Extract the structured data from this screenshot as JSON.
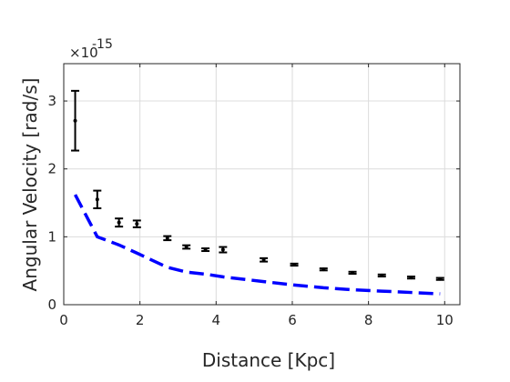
{
  "chart_data": {
    "type": "scatter",
    "title": "",
    "xlabel": "Distance [Kpc]",
    "ylabel": "Angular Velocity [rad/s]",
    "y_multiplier": "×10",
    "y_multiplier_exponent": "-15",
    "xlim": [
      0,
      10.4
    ],
    "ylim": [
      0,
      3.55
    ],
    "xticks": [
      0,
      2,
      4,
      6,
      8,
      10
    ],
    "yticks": [
      0,
      1,
      2,
      3
    ],
    "grid": true,
    "series": [
      {
        "type": "errorbar",
        "color": "#000000",
        "points": [
          {
            "x": 0.3,
            "y": 2.71,
            "err": 0.44
          },
          {
            "x": 0.88,
            "y": 1.55,
            "err": 0.13
          },
          {
            "x": 1.45,
            "y": 1.21,
            "err": 0.06
          },
          {
            "x": 1.92,
            "y": 1.19,
            "err": 0.05
          },
          {
            "x": 2.72,
            "y": 0.98,
            "err": 0.03
          },
          {
            "x": 3.22,
            "y": 0.85,
            "err": 0.025
          },
          {
            "x": 3.72,
            "y": 0.81,
            "err": 0.02
          },
          {
            "x": 4.18,
            "y": 0.81,
            "err": 0.04
          },
          {
            "x": 5.25,
            "y": 0.66,
            "err": 0.025
          },
          {
            "x": 6.05,
            "y": 0.59,
            "err": 0.015
          },
          {
            "x": 6.82,
            "y": 0.52,
            "err": 0.015
          },
          {
            "x": 7.58,
            "y": 0.47,
            "err": 0.015
          },
          {
            "x": 8.35,
            "y": 0.43,
            "err": 0.015
          },
          {
            "x": 9.12,
            "y": 0.4,
            "err": 0.015
          },
          {
            "x": 9.88,
            "y": 0.38,
            "err": 0.015
          }
        ]
      },
      {
        "type": "line",
        "style": "dashed",
        "color": "#0000ff",
        "x": [
          0.3,
          0.88,
          1.45,
          1.92,
          2.72,
          3.22,
          3.72,
          4.18,
          5.25,
          6.05,
          6.82,
          7.58,
          8.35,
          9.12,
          9.88
        ],
        "y": [
          1.62,
          1.0,
          0.88,
          0.76,
          0.55,
          0.48,
          0.45,
          0.41,
          0.34,
          0.29,
          0.25,
          0.22,
          0.2,
          0.18,
          0.16
        ]
      }
    ]
  }
}
